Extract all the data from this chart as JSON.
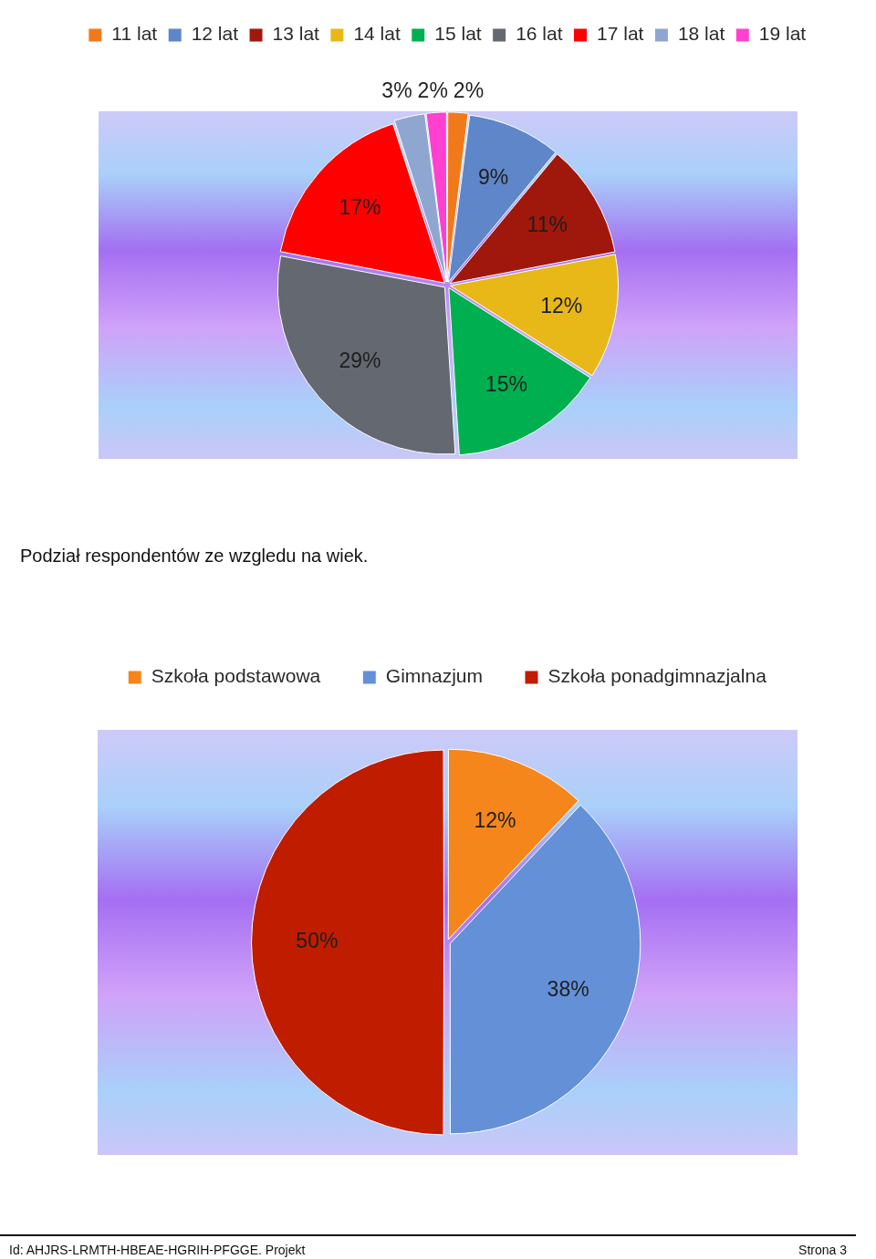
{
  "chart_data": [
    {
      "type": "pie",
      "categories": [
        "11 lat",
        "12 lat",
        "13 lat",
        "14 lat",
        "15 lat",
        "16 lat",
        "17 lat",
        "18 lat",
        "19 lat"
      ],
      "values": [
        2,
        9,
        11,
        12,
        15,
        29,
        17,
        3,
        2
      ],
      "colors": [
        "#f07a1a",
        "#5f86c8",
        "#a0180c",
        "#e8b818",
        "#00b050",
        "#646870",
        "#ff0000",
        "#8fa6d0",
        "#ff40d0"
      ],
      "value_labels": [
        "2%",
        "9%",
        "11%",
        "12%",
        "15%",
        "29%",
        "17%",
        "3%",
        "2%"
      ],
      "legend": "top",
      "annotations": [
        "Podział respondentów ze wzgledu na wiek."
      ]
    },
    {
      "type": "pie",
      "categories": [
        "Szkoła podstawowa",
        "Gimnazjum",
        "Szkoła ponadgimnazjalna"
      ],
      "values": [
        12,
        38,
        50
      ],
      "colors": [
        "#f4861c",
        "#6490d8",
        "#c01c00"
      ],
      "value_labels": [
        "12%",
        "38%",
        "50%"
      ],
      "legend": "top",
      "annotations": [
        "Id: AHJRS-LRMTH-HBEAE-HGRIH-PFGGE. Projekt",
        "Strona 3"
      ]
    }
  ]
}
